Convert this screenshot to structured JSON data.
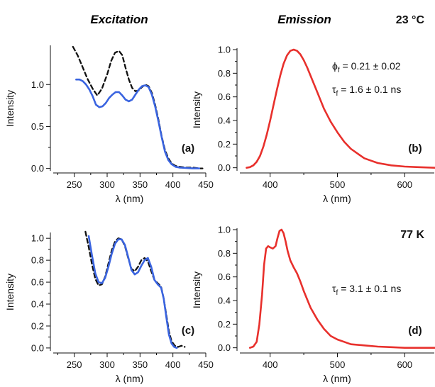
{
  "headers": {
    "excitation": "Excitation",
    "emission": "Emission"
  },
  "colors": {
    "blue": "#3a64e0",
    "red": "#e8302c",
    "dashed": "#111111",
    "axis": "#111111"
  },
  "chart_data": [
    {
      "id": "a",
      "type": "line",
      "panel_label": "(a)",
      "xlabel": "λ  (nm)",
      "ylabel": "Intensity",
      "xlim": [
        218,
        450
      ],
      "ylim": [
        -0.02,
        1.45
      ],
      "xticks": [
        250,
        300,
        350,
        400,
        450
      ],
      "yticks": [
        0.0,
        0.5,
        1.0
      ],
      "series": [
        {
          "style": "dashed",
          "color": "#111111",
          "x": [
            248,
            255,
            262,
            270,
            278,
            285,
            292,
            300,
            306,
            312,
            318,
            323,
            328,
            333,
            338,
            343,
            348,
            353,
            358,
            363,
            368,
            373,
            378,
            383,
            388,
            393,
            398,
            404,
            410,
            420,
            430,
            440,
            445
          ],
          "y": [
            1.45,
            1.35,
            1.22,
            1.07,
            0.95,
            0.87,
            0.95,
            1.12,
            1.28,
            1.38,
            1.4,
            1.35,
            1.2,
            1.06,
            0.96,
            0.92,
            0.93,
            0.97,
            1.0,
            0.98,
            0.9,
            0.76,
            0.58,
            0.38,
            0.22,
            0.12,
            0.06,
            0.03,
            0.02,
            0.01,
            0.01,
            0.0,
            0.0
          ]
        },
        {
          "style": "solid",
          "color": "#3a64e0",
          "x": [
            253,
            258,
            263,
            268,
            273,
            278,
            283,
            288,
            293,
            298,
            303,
            308,
            313,
            318,
            323,
            328,
            333,
            338,
            343,
            348,
            353,
            358,
            363,
            368,
            373,
            378,
            383,
            388,
            393,
            398,
            404,
            410,
            420,
            430,
            440
          ],
          "y": [
            1.06,
            1.06,
            1.04,
            1.0,
            0.94,
            0.86,
            0.76,
            0.73,
            0.74,
            0.78,
            0.84,
            0.88,
            0.91,
            0.91,
            0.87,
            0.82,
            0.8,
            0.82,
            0.88,
            0.94,
            0.98,
            0.99,
            0.97,
            0.88,
            0.74,
            0.56,
            0.37,
            0.2,
            0.1,
            0.05,
            0.02,
            0.01,
            0.005,
            0.0,
            0.0
          ]
        }
      ]
    },
    {
      "id": "b",
      "type": "line",
      "panel_label": "(b)",
      "temperature": "23 °C",
      "annotations": [
        {
          "sym": "ϕ",
          "sub": "f",
          "text": " = 0.21 ± 0.02"
        },
        {
          "sym": "τ",
          "sub": "f",
          "text": " = 1.6 ± 0.1 ns"
        }
      ],
      "xlabel": "λ  (nm)",
      "ylabel": "Intensity",
      "xlim": [
        355,
        645
      ],
      "ylim": [
        -0.02,
        1.0
      ],
      "xticks": [
        400,
        500,
        600
      ],
      "yticks": [
        0.0,
        0.2,
        0.4,
        0.6,
        0.8,
        1.0
      ],
      "series": [
        {
          "style": "solid",
          "color": "#e8302c",
          "x": [
            365,
            370,
            375,
            380,
            385,
            390,
            395,
            400,
            405,
            410,
            415,
            420,
            425,
            430,
            435,
            440,
            445,
            450,
            455,
            460,
            465,
            470,
            475,
            480,
            490,
            500,
            510,
            520,
            530,
            540,
            550,
            560,
            580,
            600,
            620,
            645
          ],
          "y": [
            0.0,
            0.005,
            0.02,
            0.05,
            0.1,
            0.18,
            0.28,
            0.4,
            0.53,
            0.66,
            0.78,
            0.88,
            0.95,
            0.99,
            1.0,
            0.99,
            0.96,
            0.91,
            0.85,
            0.78,
            0.71,
            0.64,
            0.57,
            0.5,
            0.39,
            0.3,
            0.22,
            0.16,
            0.12,
            0.08,
            0.06,
            0.04,
            0.02,
            0.01,
            0.005,
            0.0
          ]
        }
      ]
    },
    {
      "id": "c",
      "type": "line",
      "panel_label": "(c)",
      "xlabel": "λ  (nm)",
      "ylabel": "Intensity",
      "xlim": [
        218,
        450
      ],
      "ylim": [
        -0.02,
        1.04
      ],
      "xticks": [
        250,
        300,
        350,
        400,
        450
      ],
      "yticks": [
        0.0,
        0.2,
        0.4,
        0.6,
        0.8,
        1.0
      ],
      "series": [
        {
          "style": "dashed",
          "color": "#111111",
          "x": [
            267,
            272,
            277,
            282,
            287,
            292,
            297,
            302,
            307,
            312,
            317,
            322,
            327,
            332,
            337,
            342,
            347,
            352,
            357,
            362,
            367,
            372,
            377,
            382,
            386,
            390,
            394,
            398,
            403,
            408,
            413,
            418
          ],
          "y": [
            1.06,
            0.92,
            0.76,
            0.63,
            0.57,
            0.58,
            0.65,
            0.77,
            0.89,
            0.97,
            1.0,
            0.99,
            0.93,
            0.82,
            0.72,
            0.7,
            0.74,
            0.8,
            0.82,
            0.79,
            0.7,
            0.62,
            0.59,
            0.56,
            0.45,
            0.3,
            0.15,
            0.06,
            0.02,
            0.01,
            0.02,
            0.01
          ]
        },
        {
          "style": "solid",
          "color": "#3a64e0",
          "x": [
            272,
            277,
            282,
            287,
            292,
            297,
            302,
            307,
            312,
            317,
            322,
            327,
            332,
            337,
            342,
            347,
            352,
            357,
            362,
            367,
            372,
            377,
            382,
            386,
            390,
            394,
            398,
            402,
            406
          ],
          "y": [
            1.02,
            0.84,
            0.68,
            0.6,
            0.59,
            0.64,
            0.74,
            0.86,
            0.95,
            0.99,
            0.99,
            0.94,
            0.83,
            0.71,
            0.67,
            0.69,
            0.75,
            0.8,
            0.82,
            0.74,
            0.62,
            0.58,
            0.55,
            0.45,
            0.28,
            0.12,
            0.04,
            0.01,
            0.0
          ]
        }
      ]
    },
    {
      "id": "d",
      "type": "line",
      "panel_label": "(d)",
      "temperature": "77 K",
      "annotations": [
        {
          "sym": "τ",
          "sub": "f",
          "text": " = 3.1 ± 0.1 ns"
        }
      ],
      "xlabel": "λ  (nm)",
      "ylabel": "Intensity",
      "xlim": [
        355,
        645
      ],
      "ylim": [
        -0.02,
        1.0
      ],
      "xticks": [
        400,
        500,
        600
      ],
      "yticks": [
        0.0,
        0.2,
        0.4,
        0.6,
        0.8,
        1.0
      ],
      "series": [
        {
          "style": "solid",
          "color": "#e8302c",
          "x": [
            370,
            375,
            380,
            384,
            388,
            391,
            394,
            397,
            400,
            404,
            408,
            411,
            414,
            417,
            420,
            423,
            426,
            430,
            435,
            440,
            445,
            450,
            455,
            460,
            470,
            480,
            490,
            500,
            510,
            520,
            540,
            560,
            580,
            600,
            620,
            645
          ],
          "y": [
            0.0,
            0.01,
            0.05,
            0.2,
            0.45,
            0.7,
            0.84,
            0.86,
            0.85,
            0.84,
            0.86,
            0.93,
            0.99,
            1.0,
            0.97,
            0.9,
            0.82,
            0.74,
            0.68,
            0.63,
            0.56,
            0.48,
            0.41,
            0.34,
            0.24,
            0.16,
            0.1,
            0.07,
            0.05,
            0.03,
            0.02,
            0.01,
            0.005,
            0.0,
            0.0,
            0.0
          ]
        }
      ]
    }
  ]
}
